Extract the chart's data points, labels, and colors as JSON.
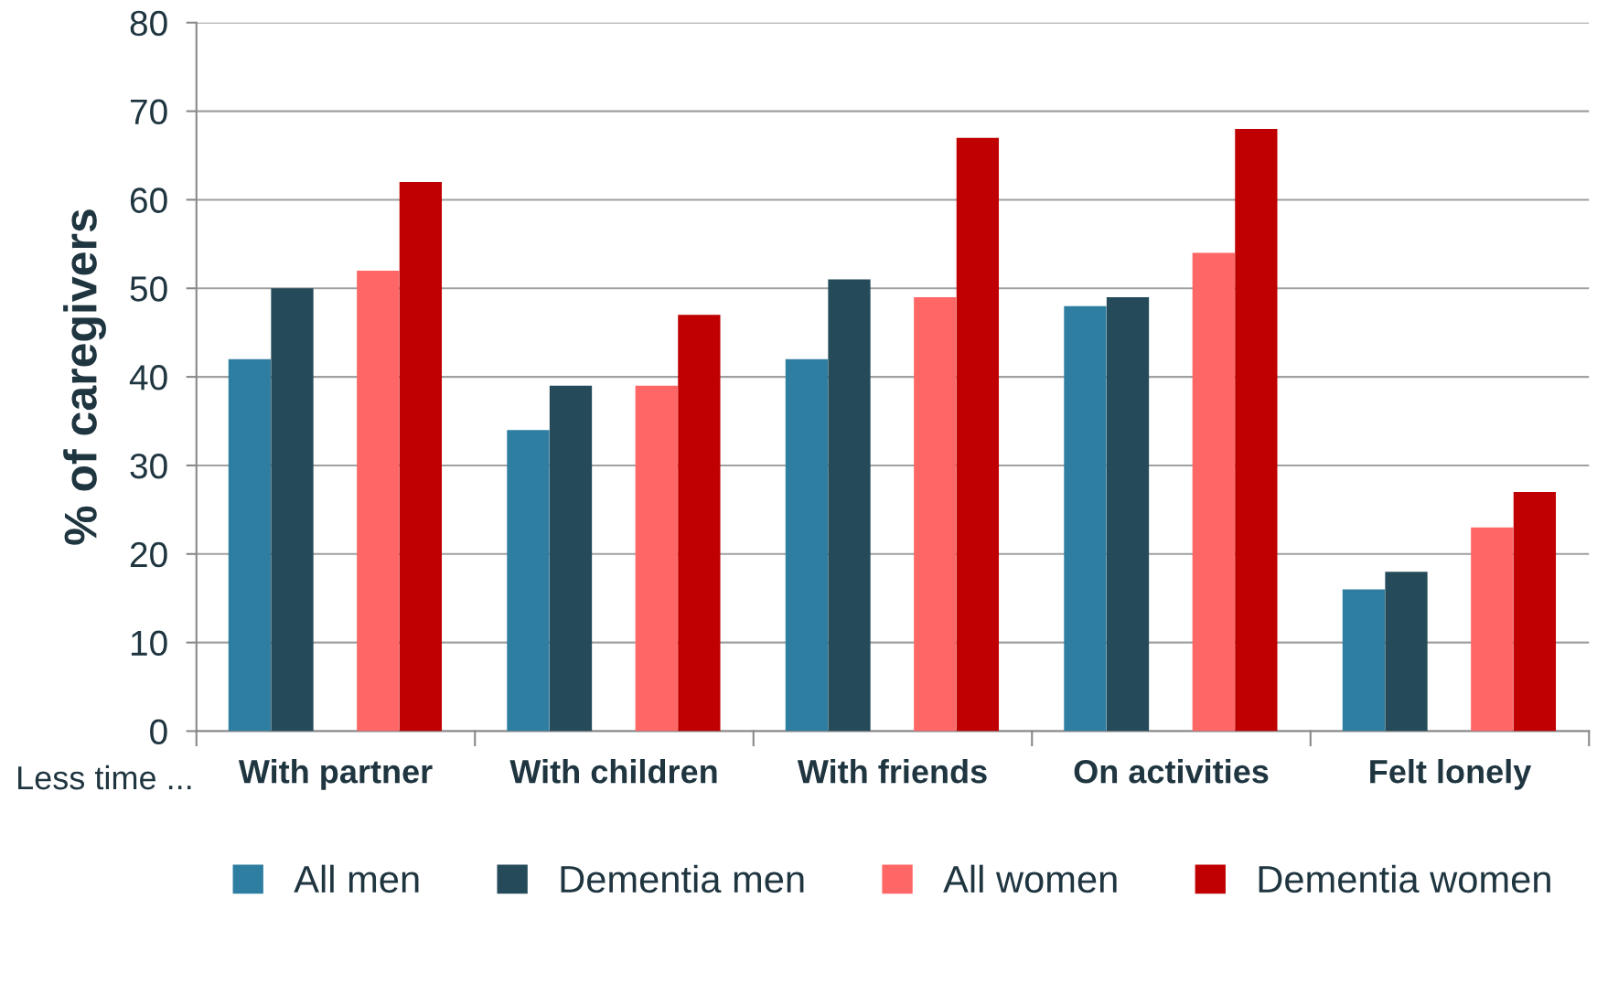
{
  "chart_data": {
    "type": "bar",
    "ylabel": "% of caregivers",
    "categories": [
      "With partner",
      "With children",
      "With friends",
      "On activities",
      "Felt lonely"
    ],
    "series": [
      {
        "name": "All men",
        "color": "#2e7ea1",
        "values": [
          42,
          34,
          42,
          48,
          16
        ]
      },
      {
        "name": "Dementia men",
        "color": "#254b5a",
        "values": [
          50,
          39,
          51,
          49,
          18
        ]
      },
      {
        "name": "All women",
        "color": "#ff6666",
        "values": [
          52,
          39,
          49,
          54,
          23
        ]
      },
      {
        "name": "Dementia women",
        "color": "#c00000",
        "values": [
          62,
          47,
          67,
          68,
          27
        ]
      }
    ],
    "ylim": [
      0,
      80
    ],
    "yticks": [
      0,
      10,
      20,
      30,
      40,
      50,
      60,
      70,
      80
    ],
    "grid": "y",
    "legend": "bottom",
    "annotations": [
      "Less time ..."
    ]
  }
}
